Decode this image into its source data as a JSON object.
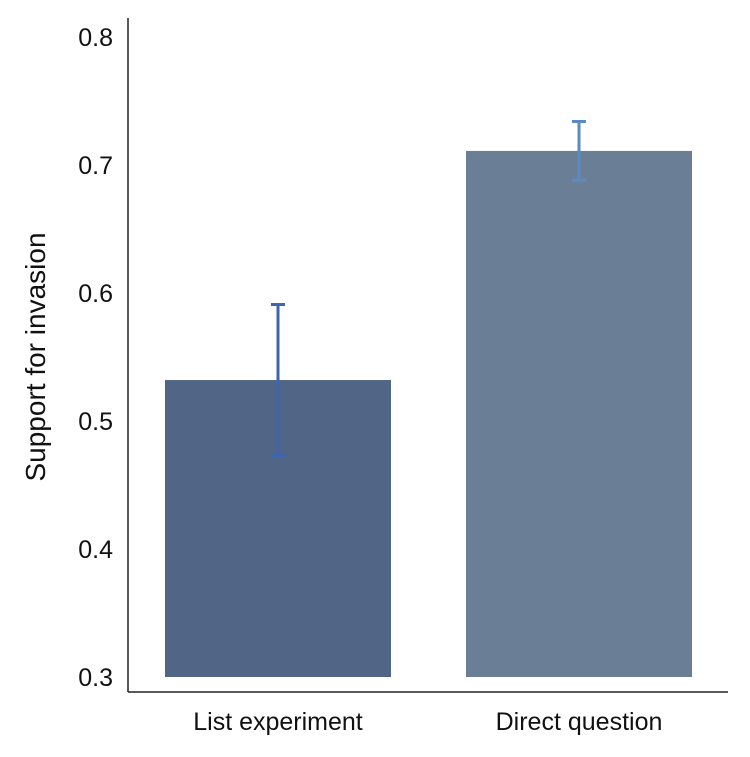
{
  "chart_data": {
    "type": "bar",
    "title": "",
    "xlabel": "",
    "ylabel": "Support for invasion",
    "ylim": [
      0.3,
      0.8
    ],
    "yticks": [
      0.3,
      0.4,
      0.5,
      0.6,
      0.7,
      0.8
    ],
    "ytick_labels": [
      "0.3",
      "0.4",
      "0.5",
      "0.6",
      "0.7",
      "0.8"
    ],
    "categories": [
      "List experiment",
      "Direct question"
    ],
    "values": [
      0.532,
      0.711
    ],
    "error_low": [
      0.473,
      0.688
    ],
    "error_high": [
      0.591,
      0.734
    ],
    "bar_colors": [
      "#516586",
      "#6a7e96"
    ],
    "error_colors": [
      "#3f65ac",
      "#5a8ac2"
    ],
    "grid": false,
    "legend": "none"
  }
}
